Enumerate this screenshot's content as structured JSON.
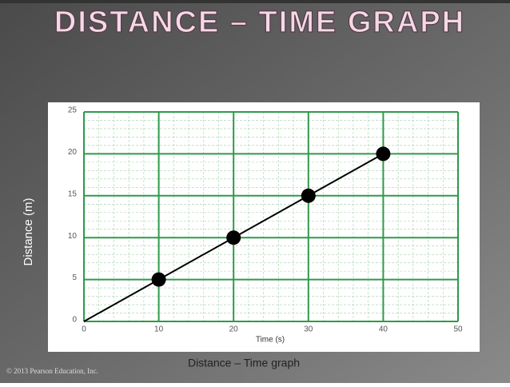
{
  "chart_data": {
    "type": "line",
    "title": "DISTANCE – TIME GRAPH",
    "caption": "Distance – Time graph",
    "x_label": "Time (s)",
    "y_label": "Distance (m)",
    "x": [
      0,
      10,
      20,
      30,
      40
    ],
    "series": [
      {
        "name": "Distance",
        "color": "#000000",
        "values": [
          0,
          5,
          10,
          15,
          20
        ]
      }
    ],
    "xlim": [
      0,
      50
    ],
    "xticks": [
      0,
      10,
      20,
      30,
      40,
      50
    ],
    "ylim": [
      0,
      25
    ],
    "yticks": [
      0,
      5,
      10,
      15,
      20,
      25
    ],
    "grid": true,
    "grid_color": "#2e9a4a"
  },
  "footer": "© 2013 Pearson Education, Inc."
}
